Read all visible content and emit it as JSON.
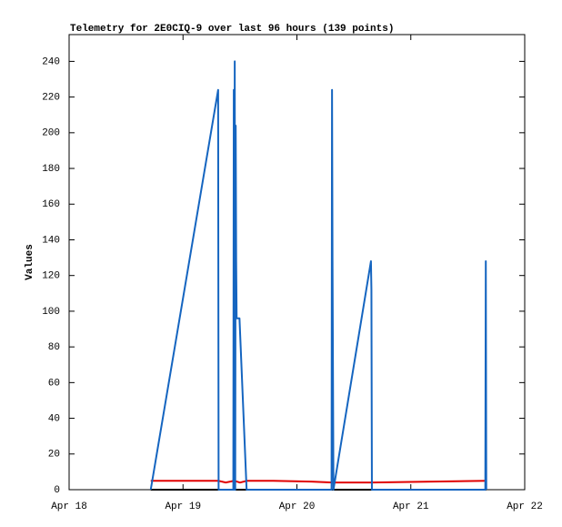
{
  "chart_data": {
    "type": "line",
    "title": "Telemetry for 2E0CIQ-9 over last 96 hours (139 points)",
    "y_label": "Values",
    "xlim": [
      0,
      96
    ],
    "xticks": [
      {
        "value": 0,
        "label": "Apr 18"
      },
      {
        "value": 24,
        "label": "Apr 19"
      },
      {
        "value": 48,
        "label": "Apr 20"
      },
      {
        "value": 72,
        "label": "Apr 21"
      },
      {
        "value": 96,
        "label": "Apr 22"
      }
    ],
    "ylim": [
      0,
      255
    ],
    "yticks": [
      0,
      20,
      40,
      60,
      80,
      100,
      120,
      140,
      160,
      180,
      200,
      220,
      240
    ],
    "series": [
      {
        "color": "#000000",
        "x": [
          17.2,
          87.9
        ],
        "values": [
          0,
          0
        ]
      },
      {
        "color": "#e00000",
        "x": [
          17.2,
          31.4,
          33.0,
          34.8,
          36.0,
          37.5,
          43.0,
          51.0,
          55.5,
          63.7,
          87.9
        ],
        "values": [
          5,
          5,
          4,
          5,
          4,
          5,
          5,
          4.5,
          4,
          4,
          5
        ]
      },
      {
        "color": "#1565c0",
        "x": [
          17.2,
          31.4,
          31.5,
          34.6,
          34.7,
          34.8,
          34.9,
          35.0,
          35.1,
          35.2,
          35.3,
          35.9,
          37.4,
          55.3,
          55.4,
          55.5,
          55.7,
          63.6,
          63.7,
          63.8,
          87.7,
          87.8,
          87.9
        ],
        "values": [
          0,
          224,
          0,
          0,
          224,
          0,
          240,
          0,
          204,
          128,
          96,
          96,
          0,
          0,
          224,
          128,
          0,
          128,
          112,
          0,
          0,
          128,
          0
        ]
      }
    ]
  }
}
